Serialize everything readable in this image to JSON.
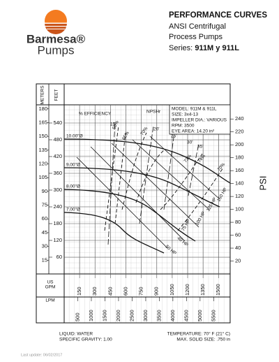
{
  "header": {
    "brand": "Barmesa®",
    "brand_sub": "Pumps",
    "title": "PERFORMANCE CURVES",
    "line1": "ANSI Centrifugal",
    "line2": "Process Pumps",
    "series_label": "Series:",
    "series_value": "911M y 911L"
  },
  "axes": {
    "meters_title": "METERS",
    "feet_title": "FEET",
    "psi_title": "PSI",
    "gpm_title": [
      "US",
      "GPM"
    ],
    "lpm_title": "LPM",
    "meters": [
      180,
      165,
      150,
      135,
      120,
      105,
      90,
      75,
      60,
      45,
      30,
      15
    ],
    "feet": [
      540,
      480,
      420,
      360,
      300,
      240,
      180,
      120,
      60
    ],
    "psi": [
      240,
      220,
      200,
      180,
      160,
      140,
      120,
      100,
      80,
      60,
      40,
      20
    ],
    "gpm": [
      150,
      300,
      450,
      600,
      750,
      900,
      1050,
      1200,
      1350,
      1500
    ],
    "lpm": [
      500,
      1000,
      1500,
      2000,
      2500,
      3000,
      3500,
      4000,
      4500,
      5000,
      5500
    ]
  },
  "curves": {
    "impellers": [
      "10.00\"Ø",
      "9.00\"Ø",
      "8.00\"Ø",
      "7.00\"Ø"
    ],
    "efficiency_title": "% EFFICIENCY",
    "npsh_title": "NPSHr",
    "efficiency": [
      "60%",
      "65%",
      "70%",
      "73%",
      "74%",
      "70%"
    ],
    "npsh": [
      "15'",
      "20'",
      "25'",
      "30'",
      "35'"
    ],
    "hp": [
      "50 HP",
      "40 HP",
      "75 HP",
      "100 HP",
      "125 HP",
      "150 HP"
    ]
  },
  "spec": [
    "MODEL: 911M & 911L",
    "SIZE: 3x4-13",
    "IMPELLER DIA.: VARIOUS",
    "RPM: 3500",
    "EYE AREA: 14.20 in²"
  ],
  "footer": {
    "liquid": "LIQUID: WATER",
    "gravity": "SPECIFIC GRAVITY: 1.00",
    "temperature": "TEMPERATURE: 70° F (21° C)",
    "solid": "MAX. SOLID SIZE: .750 in",
    "updated": "Last update: 06/02/2017"
  }
}
